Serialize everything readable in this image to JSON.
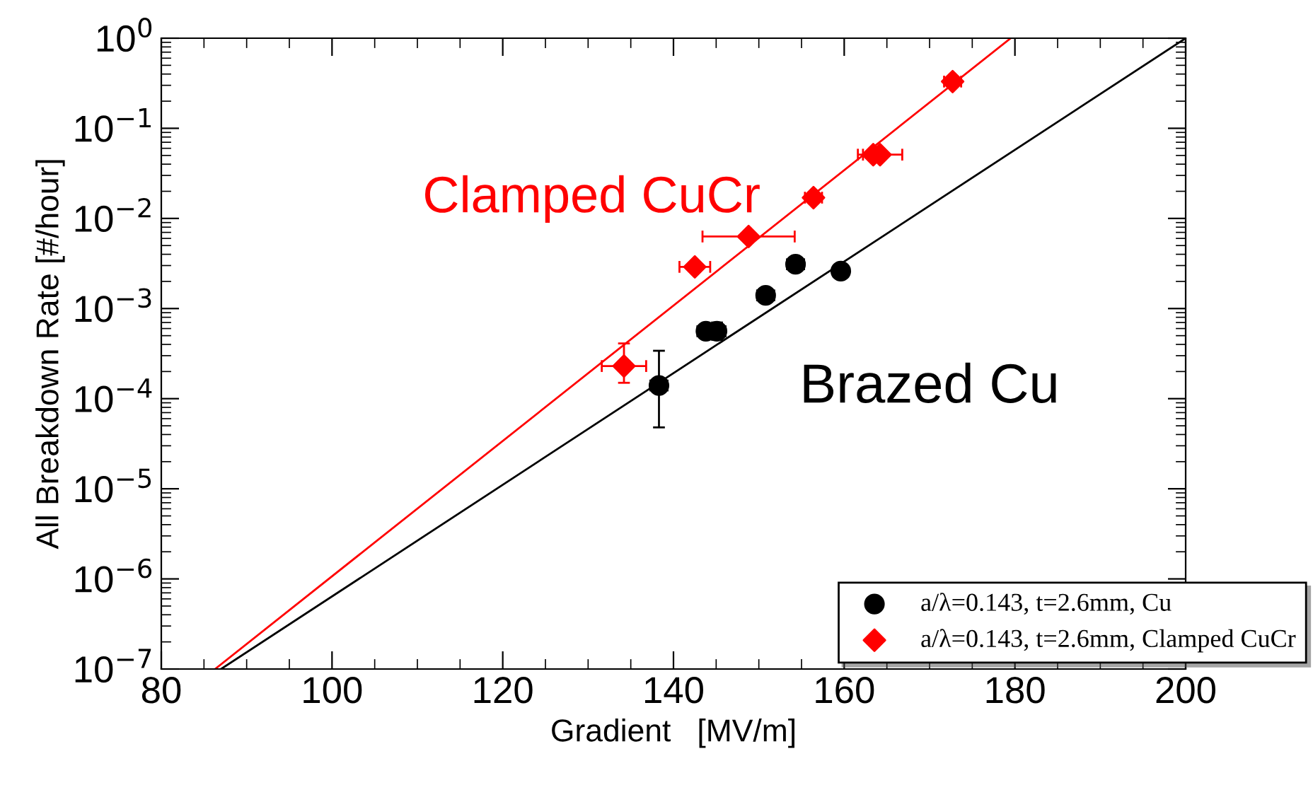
{
  "chart_data": {
    "type": "scatter",
    "xlabel": "Gradient   [MV/m]",
    "ylabel": "All Breakdown Rate [#/hour]",
    "log": "y",
    "xlim": [
      80,
      200
    ],
    "ylim": [
      1e-07,
      1
    ],
    "xticks": [
      80,
      100,
      120,
      140,
      160,
      180,
      200
    ],
    "yticks": [
      {
        "value": 1e-07,
        "label": "10$^{−7}$"
      },
      {
        "value": 1e-06,
        "label": "10$^{−6}$"
      },
      {
        "value": 1e-05,
        "label": "10$^{−5}$"
      },
      {
        "value": 0.0001,
        "label": "10$^{−4}$"
      },
      {
        "value": 0.001,
        "label": "10$^{−3}$"
      },
      {
        "value": 0.01,
        "label": "10$^{−2}$"
      },
      {
        "value": 0.1,
        "label": "10$^{−1}$"
      },
      {
        "value": 1,
        "label": "10$^{0}$"
      }
    ],
    "grid": false,
    "legend": "bottom right",
    "annotations": [
      "Clamped CuCr",
      "Brazed Cu"
    ],
    "series": [
      {
        "name": "a/λ=0.143, t=2.6mm, Cu",
        "marker": "circle",
        "color": "#000000",
        "x": [
          138.3,
          143.8,
          145.1,
          150.8,
          154.3,
          159.6
        ],
        "values": [
          0.00014,
          0.00056,
          0.00056,
          0.0014,
          0.0031,
          0.0026
        ],
        "errors": [
          [
            4.8e-05,
            0.00034
          ],
          null,
          [
            0.00045,
            0.0007
          ],
          null,
          null,
          null
        ],
        "xerrors": [
          1,
          1,
          1,
          1,
          1,
          null
        ]
      },
      {
        "name": "a/λ=0.143, t=2.6mm, Clamped CuCr",
        "marker": "diamond",
        "color": "#ff0000",
        "x": [
          134.2,
          142.5,
          148.8,
          156.4,
          163.4,
          164.2,
          172.7
        ],
        "values": [
          0.00023,
          0.0029,
          0.0063,
          0.017,
          0.051,
          0.051,
          0.33
        ],
        "errors": [
          [
            0.00015,
            0.00041
          ],
          null,
          null,
          null,
          null,
          null,
          null
        ],
        "xerrors": [
          2.6,
          1.8,
          5.4,
          1,
          1.2,
          2.6,
          1
        ]
      },
      {
        "type": "line",
        "color": "#000000",
        "x": [
          87.0,
          200
        ],
        "values": [
          1e-07,
          1
        ]
      },
      {
        "type": "line",
        "color": "#ff0000",
        "x": [
          86.3,
          179.5
        ],
        "values": [
          1e-07,
          1
        ]
      }
    ]
  }
}
